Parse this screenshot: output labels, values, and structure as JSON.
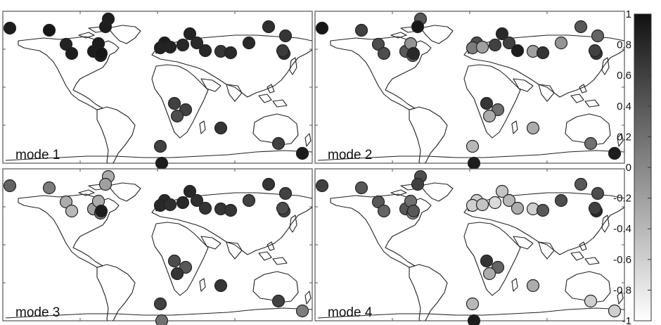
{
  "panels": [
    {
      "label": "mode 1",
      "stations": [
        {
          "id": "s01",
          "v": 0.9
        },
        {
          "id": "s02",
          "v": 0.95
        },
        {
          "id": "s03",
          "v": 0.9
        },
        {
          "id": "s04",
          "v": 0.9
        },
        {
          "id": "s05",
          "v": 0.85
        },
        {
          "id": "s06",
          "v": 0.9
        },
        {
          "id": "s07",
          "v": 0.9
        },
        {
          "id": "s08",
          "v": 0.9
        },
        {
          "id": "s09",
          "v": 0.9
        },
        {
          "id": "s10",
          "v": 0.85
        },
        {
          "id": "s11",
          "v": 0.85
        },
        {
          "id": "s12",
          "v": 0.8
        },
        {
          "id": "s13",
          "v": 0.85
        },
        {
          "id": "s14",
          "v": 0.8
        },
        {
          "id": "s15",
          "v": 0.8
        },
        {
          "id": "s16",
          "v": 0.7
        },
        {
          "id": "s17",
          "v": 0.8
        },
        {
          "id": "s18",
          "v": 0.8
        },
        {
          "id": "s19",
          "v": 0.75
        },
        {
          "id": "s20",
          "v": 0.7
        },
        {
          "id": "s21",
          "v": 0.75
        },
        {
          "id": "s22",
          "v": 0.65
        },
        {
          "id": "s23",
          "v": 0.6
        },
        {
          "id": "s24",
          "v": 0.6
        },
        {
          "id": "s25",
          "v": 0.5
        },
        {
          "id": "s26",
          "v": 0.7
        },
        {
          "id": "s27",
          "v": 0.6
        },
        {
          "id": "s28",
          "v": 0.6
        },
        {
          "id": "s29",
          "v": 0.9
        },
        {
          "id": "s30",
          "v": 0.9
        },
        {
          "id": "s31",
          "v": 0.9
        },
        {
          "id": "s32",
          "v": 0.95
        }
      ]
    },
    {
      "label": "mode 2",
      "stations": [
        {
          "id": "s01",
          "v": 0.95
        },
        {
          "id": "s02",
          "v": 0.6
        },
        {
          "id": "s03",
          "v": 0.4
        },
        {
          "id": "s04",
          "v": 0.95
        },
        {
          "id": "s05",
          "v": 0.5
        },
        {
          "id": "s06",
          "v": 0.5
        },
        {
          "id": "s07",
          "v": 0.4
        },
        {
          "id": "s08",
          "v": 0.3
        },
        {
          "id": "s09",
          "v": 0.5
        },
        {
          "id": "s10",
          "v": 0.1
        },
        {
          "id": "s11",
          "v": -0.2
        },
        {
          "id": "s12",
          "v": 0.6
        },
        {
          "id": "s13",
          "v": 0.8
        },
        {
          "id": "s14",
          "v": 0.6
        },
        {
          "id": "s15",
          "v": 0.9
        },
        {
          "id": "s16",
          "v": -0.2
        },
        {
          "id": "s17",
          "v": 0.7
        },
        {
          "id": "s18",
          "v": -0.1
        },
        {
          "id": "s19",
          "v": 0.4
        },
        {
          "id": "s20",
          "v": 0.3
        },
        {
          "id": "s21",
          "v": 0.7
        },
        {
          "id": "s22",
          "v": 0.6
        },
        {
          "id": "s23",
          "v": 0.7
        },
        {
          "id": "s24",
          "v": 0.2
        },
        {
          "id": "s25",
          "v": -0.3
        },
        {
          "id": "s26",
          "v": -0.3
        },
        {
          "id": "s27",
          "v": -0.4
        },
        {
          "id": "s28",
          "v": 0.2
        },
        {
          "id": "s29",
          "v": 0.9
        },
        {
          "id": "s30",
          "v": 0.9
        },
        {
          "id": "s31",
          "v": -0.1
        },
        {
          "id": "s32",
          "v": 0.8
        }
      ]
    },
    {
      "label": "mode 3",
      "stations": [
        {
          "id": "s01",
          "v": 0.3
        },
        {
          "id": "s02",
          "v": 0.1
        },
        {
          "id": "s03",
          "v": -0.3
        },
        {
          "id": "s04",
          "v": -0.2
        },
        {
          "id": "s05",
          "v": -0.3
        },
        {
          "id": "s06",
          "v": -0.4
        },
        {
          "id": "s07",
          "v": -0.2
        },
        {
          "id": "s08",
          "v": 0.1
        },
        {
          "id": "s09",
          "v": 0.8
        },
        {
          "id": "s10",
          "v": 0.8
        },
        {
          "id": "s11",
          "v": 0.75
        },
        {
          "id": "s12",
          "v": 0.8
        },
        {
          "id": "s13",
          "v": 0.8
        },
        {
          "id": "s14",
          "v": 0.75
        },
        {
          "id": "s15",
          "v": 0.7
        },
        {
          "id": "s16",
          "v": 0.7
        },
        {
          "id": "s17",
          "v": 0.7
        },
        {
          "id": "s18",
          "v": 0.6
        },
        {
          "id": "s19",
          "v": 0.7
        },
        {
          "id": "s20",
          "v": 0.6
        },
        {
          "id": "s21",
          "v": 0.6
        },
        {
          "id": "s22",
          "v": 0.5
        },
        {
          "id": "s23",
          "v": 0.5
        },
        {
          "id": "s24",
          "v": 0.4
        },
        {
          "id": "s25",
          "v": 0.7
        },
        {
          "id": "s26",
          "v": 0.7
        },
        {
          "id": "s27",
          "v": 0.6
        },
        {
          "id": "s28",
          "v": 0.6
        },
        {
          "id": "s29",
          "v": 0.1
        },
        {
          "id": "s30",
          "v": 0.2
        },
        {
          "id": "s31",
          "v": -0.3
        },
        {
          "id": "s32",
          "v": 0.9
        }
      ]
    },
    {
      "label": "mode 4",
      "stations": [
        {
          "id": "s01",
          "v": 0.6
        },
        {
          "id": "s02",
          "v": 0.4
        },
        {
          "id": "s03",
          "v": 0.5
        },
        {
          "id": "s04",
          "v": 0.6
        },
        {
          "id": "s05",
          "v": 0.4
        },
        {
          "id": "s06",
          "v": 0.3
        },
        {
          "id": "s07",
          "v": 0.4
        },
        {
          "id": "s08",
          "v": -0.1
        },
        {
          "id": "s09",
          "v": -0.6
        },
        {
          "id": "s10",
          "v": -0.6
        },
        {
          "id": "s11",
          "v": -0.5
        },
        {
          "id": "s12",
          "v": -0.7
        },
        {
          "id": "s13",
          "v": -0.5
        },
        {
          "id": "s14",
          "v": -0.4
        },
        {
          "id": "s15",
          "v": -0.3
        },
        {
          "id": "s16",
          "v": -0.6
        },
        {
          "id": "s17",
          "v": 0.4
        },
        {
          "id": "s18",
          "v": 0.5
        },
        {
          "id": "s19",
          "v": 0.4
        },
        {
          "id": "s20",
          "v": 0.5
        },
        {
          "id": "s21",
          "v": 0.8
        },
        {
          "id": "s22",
          "v": 0.6
        },
        {
          "id": "s23",
          "v": 0.7
        },
        {
          "id": "s24",
          "v": 0.3
        },
        {
          "id": "s25",
          "v": -0.3
        },
        {
          "id": "s26",
          "v": -0.3
        },
        {
          "id": "s27",
          "v": -0.4
        },
        {
          "id": "s28",
          "v": -0.6
        },
        {
          "id": "s29",
          "v": -0.6
        },
        {
          "id": "s30",
          "v": 0.9
        },
        {
          "id": "s31",
          "v": 0.2
        },
        {
          "id": "s32",
          "v": 0.4
        }
      ]
    }
  ],
  "colorbar": {
    "min": -1,
    "max": 1,
    "ticks": [
      "1",
      "0.8",
      "0.6",
      "0.4",
      "0.2",
      "0",
      "-0.2",
      "-0.4",
      "-0.6",
      "-0.8",
      "-1"
    ],
    "color_low": "#ffffff",
    "color_high": "#111111"
  }
}
